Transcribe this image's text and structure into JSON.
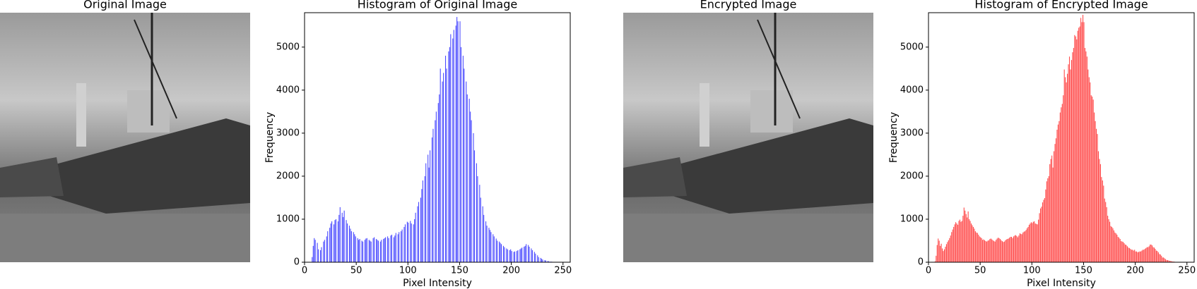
{
  "images": [
    {
      "title": "Original Image"
    },
    {
      "title": "Encrypted Image"
    }
  ],
  "chart_data": [
    {
      "type": "histogram",
      "title": "Histogram of Original Image",
      "xlabel": "Pixel Intensity",
      "ylabel": "Frequency",
      "color": "#4c4cff",
      "bins": [
        0,
        1,
        2,
        3,
        4,
        5,
        6,
        7,
        8,
        9,
        10,
        11,
        12,
        13,
        14,
        15,
        16,
        17,
        18,
        19,
        20,
        21,
        22,
        23,
        24,
        25,
        26,
        27,
        28,
        29,
        30,
        31,
        32,
        33,
        34,
        35,
        36,
        37,
        38,
        39,
        40,
        41,
        42,
        43,
        44,
        45,
        46,
        47,
        48,
        49,
        50,
        51,
        52,
        53,
        54,
        55,
        56,
        57,
        58,
        59,
        60,
        61,
        62,
        63,
        64,
        65,
        66,
        67,
        68,
        69,
        70,
        71,
        72,
        73,
        74,
        75,
        76,
        77,
        78,
        79,
        80,
        81,
        82,
        83,
        84,
        85,
        86,
        87,
        88,
        89,
        90,
        91,
        92,
        93,
        94,
        95,
        96,
        97,
        98,
        99,
        100,
        101,
        102,
        103,
        104,
        105,
        106,
        107,
        108,
        109,
        110,
        111,
        112,
        113,
        114,
        115,
        116,
        117,
        118,
        119,
        120,
        121,
        122,
        123,
        124,
        125,
        126,
        127,
        128,
        129,
        130,
        131,
        132,
        133,
        134,
        135,
        136,
        137,
        138,
        139,
        140,
        141,
        142,
        143,
        144,
        145,
        146,
        147,
        148,
        149,
        150,
        151,
        152,
        153,
        154,
        155,
        156,
        157,
        158,
        159,
        160,
        161,
        162,
        163,
        164,
        165,
        166,
        167,
        168,
        169,
        170,
        171,
        172,
        173,
        174,
        175,
        176,
        177,
        178,
        179,
        180,
        181,
        182,
        183,
        184,
        185,
        186,
        187,
        188,
        189,
        190,
        191,
        192,
        193,
        194,
        195,
        196,
        197,
        198,
        199,
        200,
        201,
        202,
        203,
        204,
        205,
        206,
        207,
        208,
        209,
        210,
        211,
        212,
        213,
        214,
        215,
        216,
        217,
        218,
        219,
        220,
        221,
        222,
        223,
        224,
        225,
        226,
        227,
        228,
        229,
        230,
        231,
        232,
        233,
        234,
        235,
        236,
        237,
        238,
        239,
        240,
        241,
        242,
        243,
        244,
        245,
        246,
        247,
        248,
        249,
        250,
        251,
        252,
        253,
        254,
        255,
        256
      ],
      "values": [
        0,
        0,
        0,
        0,
        0,
        0,
        0,
        120,
        380,
        560,
        520,
        0,
        450,
        300,
        0,
        280,
        350,
        0,
        480,
        520,
        0,
        600,
        720,
        0,
        800,
        900,
        950,
        0,
        880,
        980,
        1000,
        0,
        950,
        1100,
        1280,
        0,
        1150,
        1050,
        1200,
        0,
        980,
        900,
        0,
        850,
        780,
        720,
        0,
        700,
        650,
        600,
        0,
        560,
        520,
        540,
        0,
        500,
        480,
        0,
        520,
        550,
        560,
        0,
        520,
        500,
        480,
        0,
        560,
        580,
        0,
        540,
        520,
        500,
        0,
        480,
        520,
        0,
        540,
        560,
        580,
        0,
        600,
        560,
        0,
        620,
        640,
        0,
        580,
        620,
        680,
        0,
        650,
        700,
        0,
        720,
        760,
        0,
        820,
        880,
        0,
        940,
        920,
        0,
        960,
        900,
        0,
        880,
        1000,
        1150,
        0,
        1300,
        1400,
        0,
        1500,
        1700,
        1900,
        0,
        2000,
        2300,
        0,
        2500,
        2200,
        2600,
        0,
        2900,
        3100,
        0,
        3300,
        3500,
        0,
        3700,
        3900,
        4500,
        0,
        4200,
        4400,
        0,
        4800,
        4500,
        0,
        4900,
        5000,
        5300,
        0,
        5200,
        5400,
        0,
        5500,
        5700,
        5600,
        0,
        5600,
        5000,
        0,
        4800,
        4500,
        0,
        4200,
        3900,
        0,
        3800,
        3500,
        3300,
        0,
        3000,
        2600,
        0,
        2300,
        2000,
        0,
        1800,
        1500,
        0,
        1300,
        1100,
        0,
        950,
        850,
        0,
        800,
        750,
        700,
        0,
        650,
        600,
        0,
        550,
        500,
        0,
        480,
        450,
        420,
        0,
        380,
        350,
        0,
        320,
        300,
        0,
        280,
        300,
        260,
        0,
        240,
        250,
        0,
        260,
        280,
        0,
        300,
        320,
        340,
        0,
        360,
        380,
        420,
        0,
        400,
        360,
        0,
        320,
        280,
        0,
        240,
        200,
        0,
        160,
        120,
        0,
        100,
        80,
        60,
        0,
        50,
        40,
        0,
        30,
        20,
        0,
        15,
        10,
        8,
        0,
        5,
        3,
        0,
        2,
        1,
        0,
        0,
        0,
        0,
        0,
        0,
        0,
        0,
        0
      ],
      "xlim": [
        0,
        257
      ],
      "ylim": [
        0,
        5800
      ],
      "xticks": [
        0,
        50,
        100,
        150,
        200,
        250
      ],
      "yticks": [
        0,
        1000,
        2000,
        3000,
        4000,
        5000
      ]
    },
    {
      "type": "histogram",
      "title": "Histogram of Encrypted Image",
      "xlabel": "Pixel Intensity",
      "ylabel": "Frequency",
      "color": "#ff4c4c",
      "bins": [
        0,
        1,
        2,
        3,
        4,
        5,
        6,
        7,
        8,
        9,
        10,
        11,
        12,
        13,
        14,
        15,
        16,
        17,
        18,
        19,
        20,
        21,
        22,
        23,
        24,
        25,
        26,
        27,
        28,
        29,
        30,
        31,
        32,
        33,
        34,
        35,
        36,
        37,
        38,
        39,
        40,
        41,
        42,
        43,
        44,
        45,
        46,
        47,
        48,
        49,
        50,
        51,
        52,
        53,
        54,
        55,
        56,
        57,
        58,
        59,
        60,
        61,
        62,
        63,
        64,
        65,
        66,
        67,
        68,
        69,
        70,
        71,
        72,
        73,
        74,
        75,
        76,
        77,
        78,
        79,
        80,
        81,
        82,
        83,
        84,
        85,
        86,
        87,
        88,
        89,
        90,
        91,
        92,
        93,
        94,
        95,
        96,
        97,
        98,
        99,
        100,
        101,
        102,
        103,
        104,
        105,
        106,
        107,
        108,
        109,
        110,
        111,
        112,
        113,
        114,
        115,
        116,
        117,
        118,
        119,
        120,
        121,
        122,
        123,
        124,
        125,
        126,
        127,
        128,
        129,
        130,
        131,
        132,
        133,
        134,
        135,
        136,
        137,
        138,
        139,
        140,
        141,
        142,
        143,
        144,
        145,
        146,
        147,
        148,
        149,
        150,
        151,
        152,
        153,
        154,
        155,
        156,
        157,
        158,
        159,
        160,
        161,
        162,
        163,
        164,
        165,
        166,
        167,
        168,
        169,
        170,
        171,
        172,
        173,
        174,
        175,
        176,
        177,
        178,
        179,
        180,
        181,
        182,
        183,
        184,
        185,
        186,
        187,
        188,
        189,
        190,
        191,
        192,
        193,
        194,
        195,
        196,
        197,
        198,
        199,
        200,
        201,
        202,
        203,
        204,
        205,
        206,
        207,
        208,
        209,
        210,
        211,
        212,
        213,
        214,
        215,
        216,
        217,
        218,
        219,
        220,
        221,
        222,
        223,
        224,
        225,
        226,
        227,
        228,
        229,
        230,
        231,
        232,
        233,
        234,
        235,
        236,
        237,
        238,
        239,
        240,
        241,
        242,
        243,
        244,
        245,
        246,
        247,
        248,
        249,
        250,
        251,
        252,
        253,
        254,
        255,
        256
      ],
      "values": [
        0,
        0,
        0,
        0,
        0,
        0,
        20,
        150,
        400,
        550,
        500,
        380,
        430,
        320,
        260,
        300,
        360,
        420,
        470,
        510,
        560,
        620,
        700,
        760,
        820,
        880,
        930,
        900,
        870,
        960,
        990,
        940,
        960,
        1080,
        1270,
        1200,
        1120,
        1040,
        1180,
        1000,
        960,
        900,
        860,
        820,
        780,
        720,
        690,
        680,
        640,
        600,
        580,
        560,
        520,
        530,
        510,
        490,
        480,
        500,
        510,
        540,
        550,
        530,
        510,
        490,
        480,
        520,
        550,
        570,
        560,
        540,
        510,
        490,
        470,
        480,
        510,
        530,
        540,
        550,
        570,
        590,
        590,
        560,
        600,
        620,
        630,
        610,
        580,
        620,
        670,
        660,
        650,
        690,
        710,
        720,
        750,
        790,
        820,
        870,
        900,
        930,
        910,
        940,
        950,
        900,
        890,
        880,
        990,
        1140,
        1250,
        1290,
        1390,
        1450,
        1490,
        1690,
        1880,
        1950,
        2000,
        2280,
        2400,
        2480,
        2200,
        2580,
        2750,
        2880,
        3080,
        3200,
        3280,
        3480,
        3600,
        3680,
        3880,
        4480,
        4300,
        4180,
        4380,
        4600,
        4780,
        4480,
        4700,
        4880,
        4980,
        5280,
        5250,
        5180,
        5380,
        5450,
        5480,
        5680,
        5580,
        5750,
        5580,
        4980,
        4900,
        4780,
        4480,
        4300,
        4180,
        3880,
        3850,
        3780,
        3480,
        3280,
        3100,
        2980,
        2580,
        2400,
        2280,
        1980,
        1900,
        1780,
        1480,
        1400,
        1280,
        1080,
        1000,
        940,
        840,
        820,
        790,
        740,
        690,
        670,
        640,
        590,
        570,
        540,
        490,
        480,
        470,
        440,
        410,
        400,
        370,
        340,
        330,
        310,
        290,
        290,
        270,
        290,
        250,
        250,
        230,
        240,
        250,
        250,
        270,
        290,
        290,
        310,
        330,
        350,
        350,
        370,
        410,
        410,
        390,
        350,
        340,
        310,
        270,
        260,
        230,
        190,
        180,
        150,
        110,
        110,
        90,
        70,
        50,
        50,
        40,
        30,
        30,
        20,
        15,
        15,
        10,
        8,
        5,
        5,
        3,
        2,
        2,
        1,
        1,
        0,
        0,
        0,
        0,
        0,
        0,
        0,
        0,
        0
      ],
      "xlim": [
        0,
        257
      ],
      "ylim": [
        0,
        5800
      ],
      "xticks": [
        0,
        50,
        100,
        150,
        200,
        250
      ],
      "yticks": [
        0,
        1000,
        2000,
        3000,
        4000,
        5000
      ]
    }
  ]
}
